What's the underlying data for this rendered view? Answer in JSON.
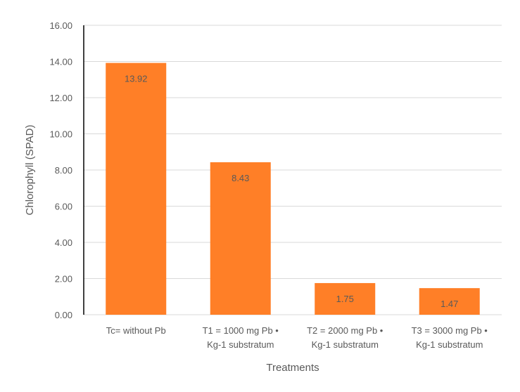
{
  "chart_data": {
    "type": "bar",
    "title": "",
    "xlabel": "Treatments",
    "ylabel": "Chlorophyll  (SPAD)",
    "categories": [
      [
        "Tc= without Pb"
      ],
      [
        "T1 = 1000 mg Pb •",
        "Kg-1 substratum"
      ],
      [
        "T2 = 2000 mg Pb •",
        "Kg-1 substratum"
      ],
      [
        "T3 = 3000 mg Pb •",
        "Kg-1 substratum"
      ]
    ],
    "values": [
      13.92,
      8.43,
      1.75,
      1.47
    ],
    "data_labels": [
      "13.92",
      "8.43",
      "1.75",
      "1.47"
    ],
    "ylim": [
      0,
      16
    ],
    "yticks": [
      "0.00",
      "2.00",
      "4.00",
      "6.00",
      "8.00",
      "10.00",
      "12.00",
      "14.00",
      "16.00"
    ],
    "grid": true,
    "legend": "none",
    "colors": {
      "bar": "#FF7F27",
      "grid": "#D9D9D9",
      "axis": "#000000",
      "text": "#595959"
    }
  }
}
